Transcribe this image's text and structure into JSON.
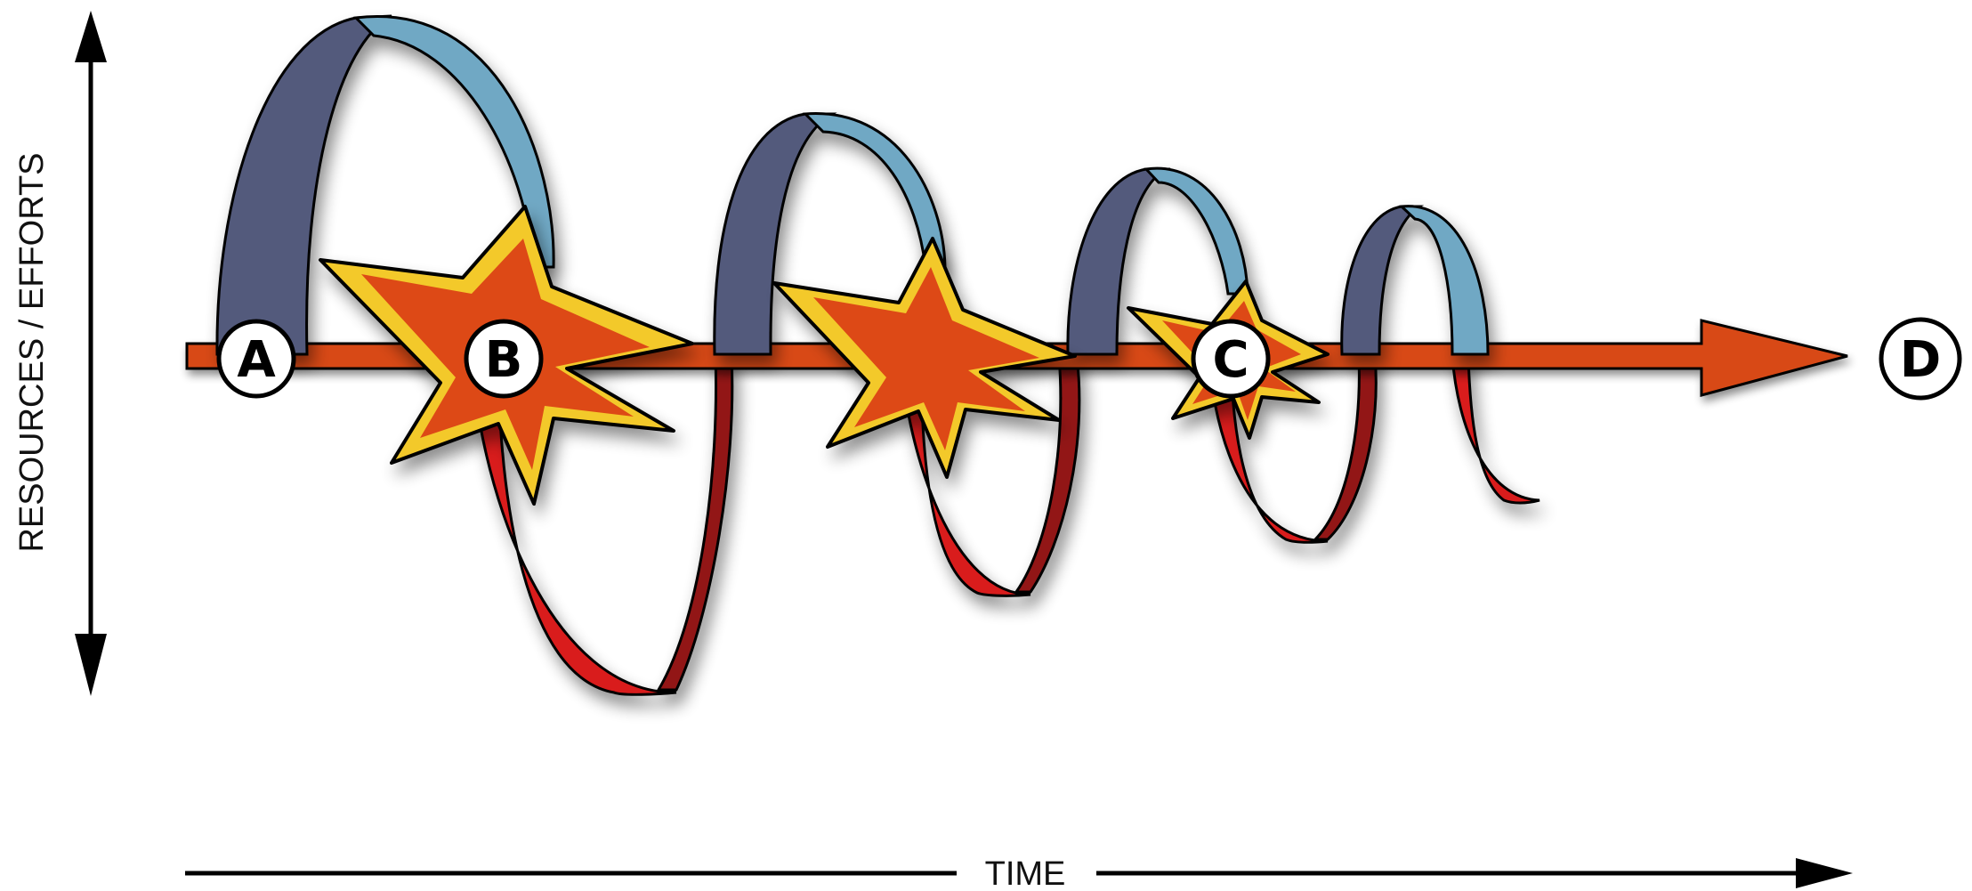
{
  "axes": {
    "y_label": "RESOURCES / EFFORTS",
    "x_label": "TIME"
  },
  "markers": {
    "a": "A",
    "b": "B",
    "c": "C",
    "d": "D"
  },
  "colors": {
    "arrow": "#d84a18",
    "ribbon_front_top": "#6fa8c4",
    "ribbon_back_top": "#535a7c",
    "ribbon_front_bottom": "#d91c1c",
    "ribbon_back_bottom": "#921818",
    "burst_outer": "#f3c92c",
    "burst_inner": "#dd4a17",
    "axis": "#000000"
  }
}
